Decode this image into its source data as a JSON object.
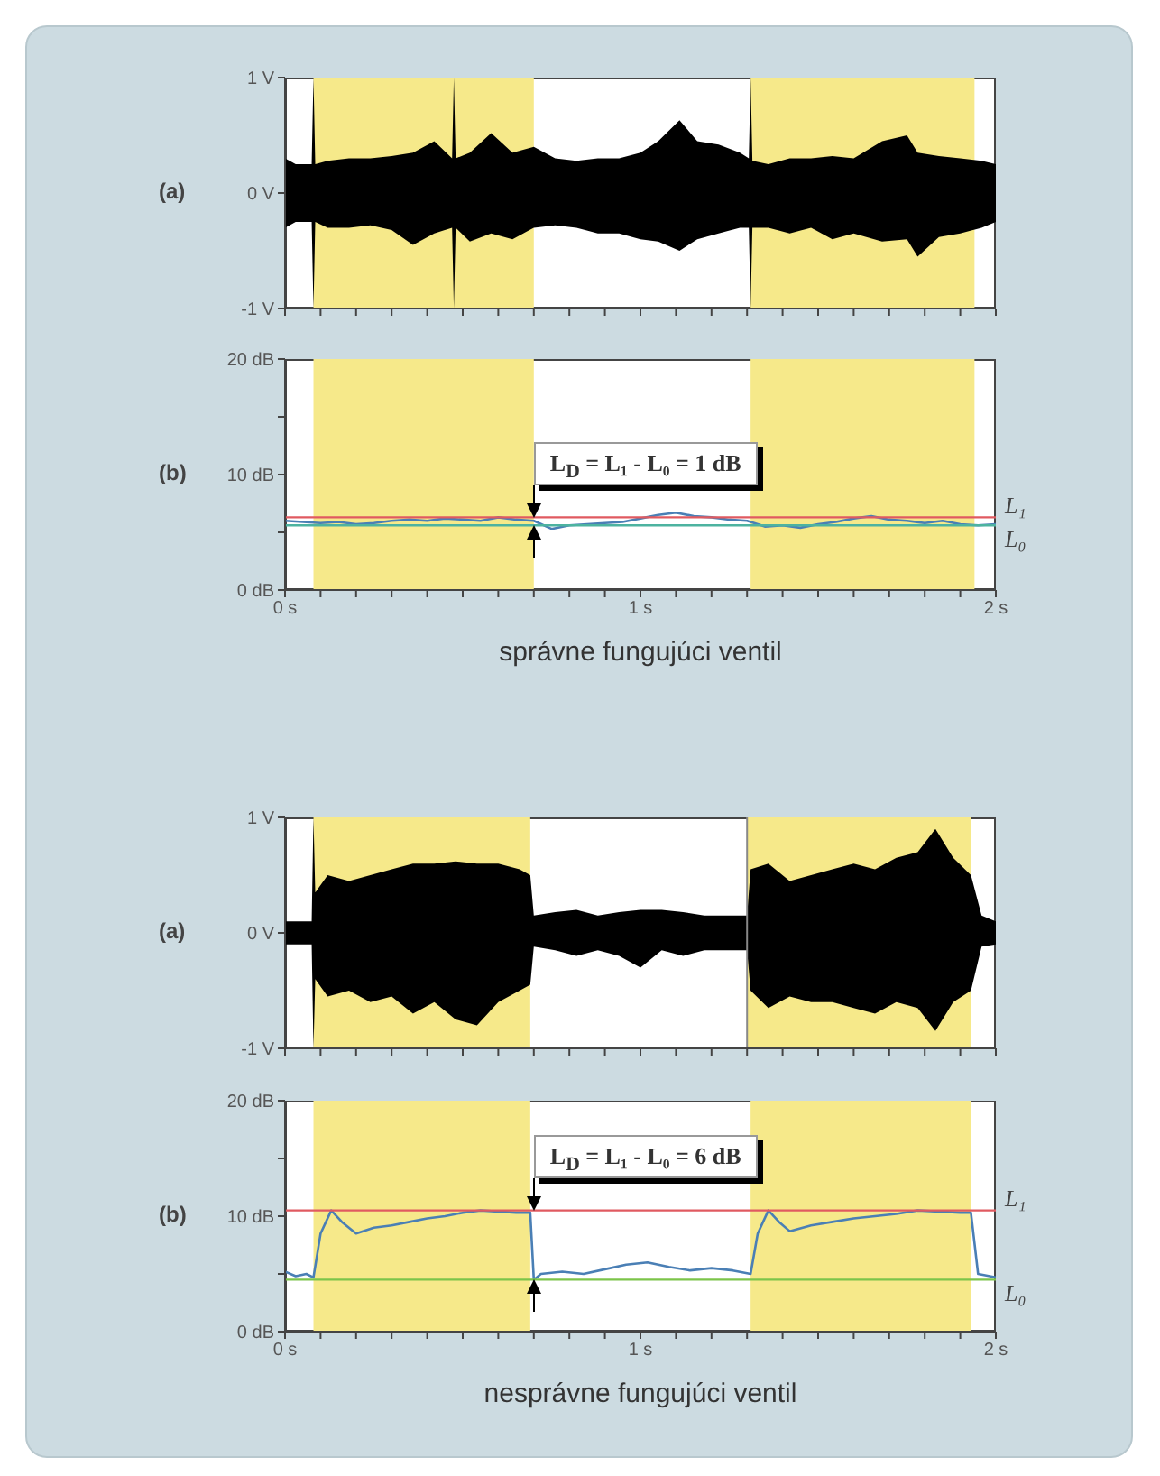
{
  "chart_data": [
    {
      "type": "area",
      "title": "(a)",
      "xlim": [
        0,
        2
      ],
      "ylim": [
        -1,
        1
      ],
      "yticks": [
        {
          "value": 1,
          "label": "1 V"
        },
        {
          "value": 0,
          "label": "0 V"
        },
        {
          "value": -1,
          "label": "-1 V"
        }
      ],
      "xticks": [
        {
          "value": 0,
          "label": null
        },
        {
          "value": 0.1,
          "label": null
        },
        {
          "value": 0.2,
          "label": null
        },
        {
          "value": 0.3,
          "label": null
        },
        {
          "value": 0.4,
          "label": null
        },
        {
          "value": 0.5,
          "label": null
        },
        {
          "value": 0.6,
          "label": null
        },
        {
          "value": 0.7,
          "label": null
        },
        {
          "value": 0.8,
          "label": null
        },
        {
          "value": 0.9,
          "label": null
        },
        {
          "value": 1,
          "label": null
        },
        {
          "value": 1.1,
          "label": null
        },
        {
          "value": 1.2,
          "label": null
        },
        {
          "value": 1.3,
          "label": null
        },
        {
          "value": 1.4,
          "label": null
        },
        {
          "value": 1.5,
          "label": null
        },
        {
          "value": 1.6,
          "label": null
        },
        {
          "value": 1.7,
          "label": null
        },
        {
          "value": 1.8,
          "label": null
        },
        {
          "value": 1.9,
          "label": null
        },
        {
          "value": 2,
          "label": null
        }
      ],
      "tick_labels": "y",
      "grid": false,
      "legend": false,
      "bands": [
        {
          "axis": "x",
          "from": 0.08,
          "to": 0.7,
          "color": "#f6e98a"
        },
        {
          "axis": "x",
          "from": 1.31,
          "to": 1.94,
          "color": "#f6e98a"
        }
      ],
      "series": [
        {
          "color": "#000000",
          "x": [
            0,
            0.03,
            0.075,
            0.08,
            0.085,
            0.12,
            0.18,
            0.24,
            0.3,
            0.36,
            0.42,
            0.47,
            0.475,
            0.48,
            0.52,
            0.58,
            0.64,
            0.7,
            0.76,
            0.82,
            0.88,
            0.94,
            1.0,
            1.05,
            1.11,
            1.16,
            1.22,
            1.28,
            1.305,
            1.31,
            1.315,
            1.36,
            1.42,
            1.48,
            1.54,
            1.6,
            1.68,
            1.75,
            1.78,
            1.84,
            1.9,
            1.96,
            2.0
          ],
          "values": [
            0.3,
            0.25,
            0.25,
            1,
            0.25,
            0.28,
            0.3,
            0.3,
            0.32,
            0.35,
            0.45,
            0.3,
            1,
            0.3,
            0.35,
            0.52,
            0.35,
            0.4,
            0.3,
            0.28,
            0.3,
            0.3,
            0.35,
            0.45,
            0.63,
            0.45,
            0.42,
            0.35,
            0.3,
            1,
            0.28,
            0.25,
            0.3,
            0.3,
            0.32,
            0.3,
            0.45,
            0.5,
            0.35,
            0.32,
            0.3,
            0.28,
            0.25
          ]
        },
        {
          "color": "#000000",
          "x": [
            0,
            0.03,
            0.075,
            0.08,
            0.085,
            0.12,
            0.18,
            0.24,
            0.3,
            0.36,
            0.42,
            0.47,
            0.475,
            0.48,
            0.52,
            0.58,
            0.64,
            0.7,
            0.76,
            0.82,
            0.88,
            0.94,
            1.0,
            1.05,
            1.11,
            1.16,
            1.22,
            1.28,
            1.305,
            1.31,
            1.315,
            1.36,
            1.42,
            1.48,
            1.54,
            1.6,
            1.68,
            1.75,
            1.78,
            1.84,
            1.9,
            1.96,
            2.0
          ],
          "values": [
            -0.3,
            -0.25,
            -0.25,
            -1,
            -0.25,
            -0.3,
            -0.3,
            -0.28,
            -0.32,
            -0.45,
            -0.35,
            -0.3,
            -1,
            -0.3,
            -0.42,
            -0.35,
            -0.4,
            -0.3,
            -0.28,
            -0.3,
            -0.35,
            -0.35,
            -0.4,
            -0.42,
            -0.5,
            -0.4,
            -0.35,
            -0.3,
            -0.3,
            -1,
            -0.3,
            -0.3,
            -0.35,
            -0.3,
            -0.4,
            -0.35,
            -0.42,
            -0.4,
            -0.55,
            -0.38,
            -0.35,
            -0.3,
            -0.25
          ]
        }
      ]
    },
    {
      "type": "line",
      "title": "(b)",
      "xlim": [
        0,
        2
      ],
      "ylim": [
        0,
        20
      ],
      "yticks": [
        {
          "value": 0,
          "label": "0 dB"
        },
        {
          "value": 5,
          "label": null
        },
        {
          "value": 10,
          "label": "10 dB"
        },
        {
          "value": 15,
          "label": null
        },
        {
          "value": 20,
          "label": "20 dB"
        }
      ],
      "xticks": [
        {
          "value": 0,
          "label": "0 s"
        },
        {
          "value": 0.1,
          "label": null
        },
        {
          "value": 0.2,
          "label": null
        },
        {
          "value": 0.3,
          "label": null
        },
        {
          "value": 0.4,
          "label": null
        },
        {
          "value": 0.5,
          "label": null
        },
        {
          "value": 0.6,
          "label": null
        },
        {
          "value": 0.7,
          "label": null
        },
        {
          "value": 0.8,
          "label": null
        },
        {
          "value": 0.9,
          "label": null
        },
        {
          "value": 1,
          "label": "1 s"
        },
        {
          "value": 1.1,
          "label": null
        },
        {
          "value": 1.2,
          "label": null
        },
        {
          "value": 1.3,
          "label": null
        },
        {
          "value": 1.4,
          "label": null
        },
        {
          "value": 1.5,
          "label": null
        },
        {
          "value": 1.6,
          "label": null
        },
        {
          "value": 1.7,
          "label": null
        },
        {
          "value": 1.8,
          "label": null
        },
        {
          "value": 1.9,
          "label": null
        },
        {
          "value": 2,
          "label": "2 s"
        }
      ],
      "grid": false,
      "legend": false,
      "bands": [
        {
          "axis": "x",
          "from": 0.08,
          "to": 0.7,
          "color": "#f6e98a"
        },
        {
          "axis": "x",
          "from": 1.31,
          "to": 1.94,
          "color": "#f6e98a"
        }
      ],
      "ref_lines": [
        {
          "axis": "y",
          "value": 6.3,
          "label": "L₁",
          "color": "#e05a60"
        },
        {
          "axis": "y",
          "value": 5.6,
          "label": "L₀",
          "color": "#4db3a0"
        }
      ],
      "annotations": [
        {
          "text": "L$_{D}$ = L₁ - L₀ = 1 dB",
          "x": 0.7,
          "y": 6.3
        },
        "správne fungujúci ventil"
      ],
      "series": [
        {
          "color": "#4a7fb5",
          "x": [
            0,
            0.05,
            0.1,
            0.15,
            0.2,
            0.25,
            0.3,
            0.35,
            0.4,
            0.45,
            0.5,
            0.55,
            0.6,
            0.65,
            0.7,
            0.75,
            0.8,
            0.85,
            0.9,
            0.95,
            1.0,
            1.05,
            1.1,
            1.15,
            1.2,
            1.25,
            1.3,
            1.35,
            1.4,
            1.45,
            1.5,
            1.55,
            1.6,
            1.65,
            1.7,
            1.75,
            1.8,
            1.85,
            1.9,
            1.95,
            2.0
          ],
          "values": [
            6.0,
            5.9,
            5.8,
            5.9,
            5.7,
            5.8,
            6.0,
            6.1,
            6.0,
            6.2,
            6.1,
            6.0,
            6.3,
            6.1,
            6.0,
            5.3,
            5.6,
            5.7,
            5.8,
            5.9,
            6.2,
            6.5,
            6.7,
            6.4,
            6.3,
            6.1,
            6.0,
            5.5,
            5.6,
            5.4,
            5.7,
            5.9,
            6.2,
            6.4,
            6.1,
            6.0,
            5.8,
            6.0,
            5.7,
            5.6,
            5.7
          ]
        }
      ]
    },
    {
      "type": "area",
      "title": "(a)",
      "xlim": [
        0,
        2
      ],
      "ylim": [
        -1,
        1
      ],
      "yticks": [
        {
          "value": 1,
          "label": "1 V"
        },
        {
          "value": 0,
          "label": "0 V"
        },
        {
          "value": -1,
          "label": "-1 V"
        }
      ],
      "xticks": [
        {
          "value": 0,
          "label": null
        },
        {
          "value": 0.1,
          "label": null
        },
        {
          "value": 0.2,
          "label": null
        },
        {
          "value": 0.3,
          "label": null
        },
        {
          "value": 0.4,
          "label": null
        },
        {
          "value": 0.5,
          "label": null
        },
        {
          "value": 0.6,
          "label": null
        },
        {
          "value": 0.7,
          "label": null
        },
        {
          "value": 0.8,
          "label": null
        },
        {
          "value": 0.9,
          "label": null
        },
        {
          "value": 1,
          "label": null
        },
        {
          "value": 1.1,
          "label": null
        },
        {
          "value": 1.2,
          "label": null
        },
        {
          "value": 1.3,
          "label": null
        },
        {
          "value": 1.4,
          "label": null
        },
        {
          "value": 1.5,
          "label": null
        },
        {
          "value": 1.6,
          "label": null
        },
        {
          "value": 1.7,
          "label": null
        },
        {
          "value": 1.8,
          "label": null
        },
        {
          "value": 1.9,
          "label": null
        },
        {
          "value": 2,
          "label": null
        }
      ],
      "tick_labels": "y",
      "grid": false,
      "legend": false,
      "bands": [
        {
          "axis": "x",
          "from": 0.08,
          "to": 0.69,
          "color": "#f6e98a"
        },
        {
          "axis": "x",
          "from": 1.3,
          "to": 1.93,
          "color": "#f6e98a"
        }
      ],
      "ref_lines": [
        {
          "axis": "x",
          "value": 1.3,
          "color": "#888888"
        }
      ],
      "series": [
        {
          "color": "#000000",
          "x": [
            0,
            0.04,
            0.075,
            0.08,
            0.085,
            0.12,
            0.18,
            0.24,
            0.3,
            0.36,
            0.42,
            0.48,
            0.54,
            0.6,
            0.66,
            0.69,
            0.7,
            0.76,
            0.82,
            0.88,
            0.94,
            1.0,
            1.06,
            1.12,
            1.18,
            1.24,
            1.3,
            1.31,
            1.36,
            1.42,
            1.48,
            1.54,
            1.6,
            1.66,
            1.72,
            1.78,
            1.83,
            1.88,
            1.93,
            1.96,
            2.0
          ],
          "values": [
            0.1,
            0.1,
            0.1,
            1,
            0.35,
            0.5,
            0.45,
            0.5,
            0.55,
            0.6,
            0.6,
            0.62,
            0.6,
            0.6,
            0.55,
            0.5,
            0.15,
            0.18,
            0.2,
            0.15,
            0.18,
            0.2,
            0.2,
            0.18,
            0.15,
            0.15,
            0.15,
            0.55,
            0.6,
            0.45,
            0.5,
            0.55,
            0.6,
            0.55,
            0.65,
            0.7,
            0.9,
            0.65,
            0.5,
            0.15,
            0.1
          ]
        },
        {
          "color": "#000000",
          "x": [
            0,
            0.04,
            0.075,
            0.08,
            0.085,
            0.12,
            0.18,
            0.24,
            0.3,
            0.36,
            0.42,
            0.48,
            0.54,
            0.6,
            0.66,
            0.69,
            0.7,
            0.76,
            0.82,
            0.88,
            0.94,
            1.0,
            1.06,
            1.12,
            1.18,
            1.24,
            1.3,
            1.31,
            1.36,
            1.42,
            1.48,
            1.54,
            1.6,
            1.66,
            1.72,
            1.78,
            1.83,
            1.88,
            1.93,
            1.96,
            2.0
          ],
          "values": [
            -0.1,
            -0.1,
            -0.1,
            -1,
            -0.4,
            -0.55,
            -0.5,
            -0.6,
            -0.55,
            -0.7,
            -0.6,
            -0.75,
            -0.8,
            -0.6,
            -0.5,
            -0.45,
            -0.12,
            -0.15,
            -0.2,
            -0.15,
            -0.2,
            -0.3,
            -0.15,
            -0.2,
            -0.15,
            -0.15,
            -0.15,
            -0.5,
            -0.65,
            -0.55,
            -0.6,
            -0.6,
            -0.65,
            -0.7,
            -0.6,
            -0.65,
            -0.85,
            -0.6,
            -0.5,
            -0.12,
            -0.1
          ]
        }
      ]
    },
    {
      "type": "line",
      "title": "(b)",
      "xlim": [
        0,
        2
      ],
      "ylim": [
        0,
        20
      ],
      "yticks": [
        {
          "value": 0,
          "label": "0 dB"
        },
        {
          "value": 5,
          "label": null
        },
        {
          "value": 10,
          "label": "10 dB"
        },
        {
          "value": 15,
          "label": null
        },
        {
          "value": 20,
          "label": "20 dB"
        }
      ],
      "xticks": [
        {
          "value": 0,
          "label": "0 s"
        },
        {
          "value": 0.1,
          "label": null
        },
        {
          "value": 0.2,
          "label": null
        },
        {
          "value": 0.3,
          "label": null
        },
        {
          "value": 0.4,
          "label": null
        },
        {
          "value": 0.5,
          "label": null
        },
        {
          "value": 0.6,
          "label": null
        },
        {
          "value": 0.7,
          "label": null
        },
        {
          "value": 0.8,
          "label": null
        },
        {
          "value": 0.9,
          "label": null
        },
        {
          "value": 1,
          "label": "1 s"
        },
        {
          "value": 1.1,
          "label": null
        },
        {
          "value": 1.2,
          "label": null
        },
        {
          "value": 1.3,
          "label": null
        },
        {
          "value": 1.4,
          "label": null
        },
        {
          "value": 1.5,
          "label": null
        },
        {
          "value": 1.6,
          "label": null
        },
        {
          "value": 1.7,
          "label": null
        },
        {
          "value": 1.8,
          "label": null
        },
        {
          "value": 1.9,
          "label": null
        },
        {
          "value": 2,
          "label": "2 s"
        }
      ],
      "grid": false,
      "legend": false,
      "bands": [
        {
          "axis": "x",
          "from": 0.08,
          "to": 0.69,
          "color": "#f6e98a"
        },
        {
          "axis": "x",
          "from": 1.31,
          "to": 1.93,
          "color": "#f6e98a"
        }
      ],
      "ref_lines": [
        {
          "axis": "y",
          "value": 10.5,
          "label": "L₁",
          "color": "#e05a60"
        },
        {
          "axis": "y",
          "value": 4.5,
          "label": "L₀",
          "color": "#7cc44a"
        }
      ],
      "annotations": [
        {
          "text": "L$_{D}$ = L₁ - L₀ = 6 dB",
          "x": 0.7,
          "y": 10.5
        },
        "nesprávne fungujúci ventil"
      ],
      "series": [
        {
          "color": "#4a7fb5",
          "x": [
            0,
            0.03,
            0.06,
            0.08,
            0.1,
            0.13,
            0.16,
            0.2,
            0.25,
            0.3,
            0.35,
            0.4,
            0.45,
            0.5,
            0.55,
            0.6,
            0.65,
            0.69,
            0.7,
            0.72,
            0.78,
            0.84,
            0.9,
            0.96,
            1.02,
            1.08,
            1.14,
            1.2,
            1.26,
            1.31,
            1.33,
            1.36,
            1.39,
            1.42,
            1.48,
            1.54,
            1.6,
            1.66,
            1.72,
            1.78,
            1.84,
            1.9,
            1.93,
            1.95,
            2.0
          ],
          "values": [
            5.2,
            4.8,
            5.0,
            4.7,
            8.5,
            10.5,
            9.5,
            8.5,
            9.0,
            9.2,
            9.5,
            9.8,
            10.0,
            10.3,
            10.5,
            10.4,
            10.3,
            10.3,
            4.5,
            5.0,
            5.2,
            5.0,
            5.4,
            5.8,
            6.0,
            5.6,
            5.3,
            5.5,
            5.3,
            5.0,
            8.5,
            10.5,
            9.5,
            8.7,
            9.2,
            9.5,
            9.8,
            10.0,
            10.2,
            10.5,
            10.4,
            10.3,
            10.3,
            5.0,
            4.7
          ]
        }
      ]
    }
  ]
}
